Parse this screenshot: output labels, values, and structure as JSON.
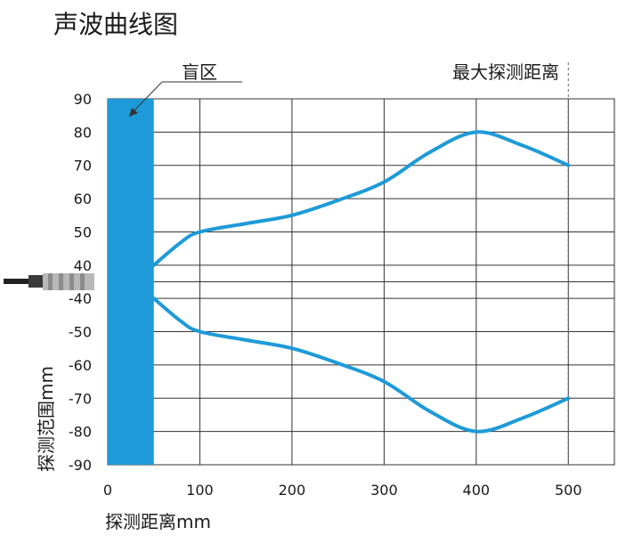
{
  "title": "声波曲线图",
  "chart_data": {
    "type": "line",
    "xlabel": "探测距离mm",
    "ylabel": "探测范围mm",
    "xlim": [
      0,
      550
    ],
    "x_ticks": [
      0,
      100,
      200,
      300,
      400,
      500
    ],
    "y_tick_labels": [
      "90",
      "80",
      "70",
      "60",
      "50",
      "40",
      "-40",
      "-50",
      "-60",
      "-70",
      "-80",
      "-90"
    ],
    "blind_zone": {
      "label": "盲区",
      "x_start": 0,
      "x_end": 50,
      "color": "#1e9ad8"
    },
    "max_distance": {
      "label": "最大探测距离",
      "x": 500
    },
    "line_color": "#1e9ad8",
    "grid": true,
    "series": [
      {
        "x": [
          50,
          80,
          100,
          150,
          200,
          250,
          300,
          350,
          400,
          450,
          500
        ],
        "y": [
          40,
          47,
          50,
          52.5,
          55,
          59.5,
          65,
          74,
          80,
          76,
          70
        ]
      },
      {
        "x": [
          50,
          80,
          100,
          150,
          200,
          250,
          300,
          350,
          400,
          450,
          500
        ],
        "y": [
          -40,
          -47,
          -50,
          -52.5,
          -55,
          -59.5,
          -65,
          -74,
          -80,
          -76,
          -70
        ]
      }
    ]
  }
}
